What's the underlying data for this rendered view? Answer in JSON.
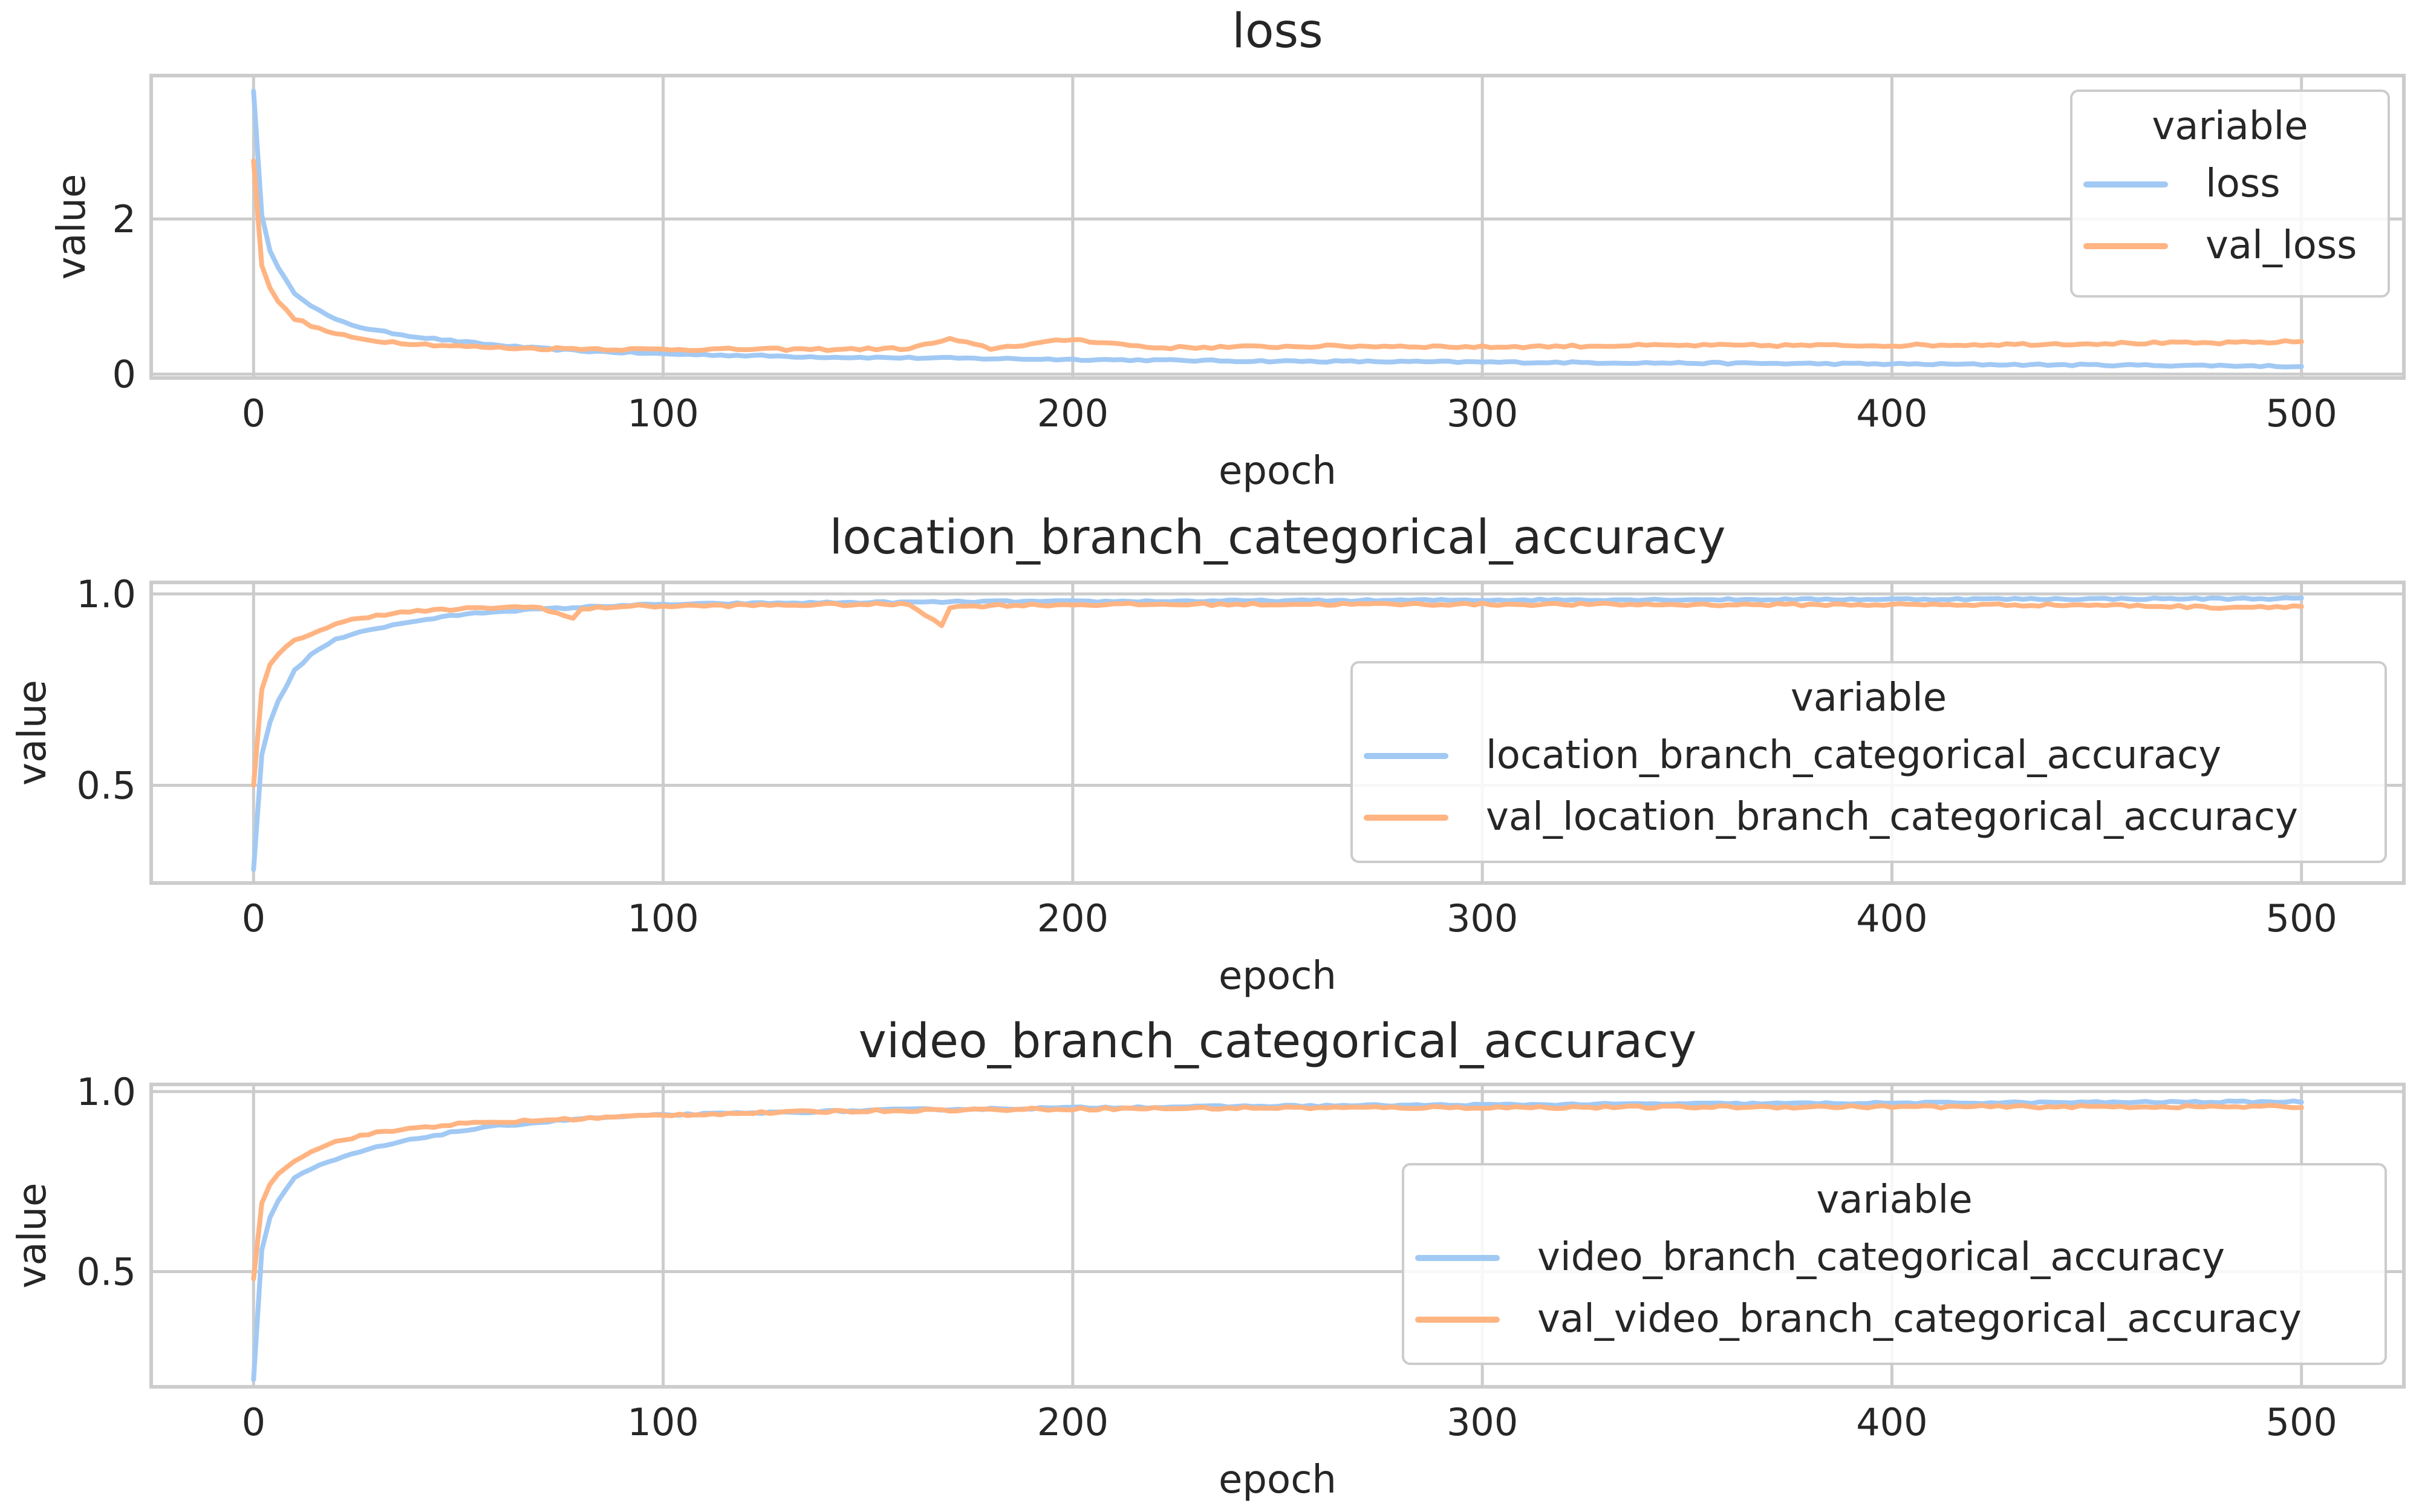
{
  "chart_data": [
    {
      "type": "line",
      "title": "loss",
      "xlabel": "epoch",
      "ylabel": "value",
      "xlim": [
        -25,
        525
      ],
      "ylim": [
        -0.05,
        3.85
      ],
      "xticks": [
        0,
        100,
        200,
        300,
        400,
        500
      ],
      "yticks": [
        0,
        2
      ],
      "ytick_labels": [
        "0",
        "2"
      ],
      "grid": true,
      "legend": {
        "title": "variable",
        "placement": "upper right"
      },
      "series": [
        {
          "name": "loss",
          "color": "#a1c9f4",
          "x": [
            0,
            1,
            2,
            3,
            5,
            8,
            10,
            15,
            20,
            25,
            30,
            40,
            50,
            60,
            70,
            80,
            90,
            100,
            120,
            140,
            160,
            180,
            200,
            220,
            240,
            260,
            280,
            300,
            320,
            340,
            360,
            380,
            400,
            420,
            440,
            460,
            480,
            500
          ],
          "y": [
            3.65,
            2.6,
            2.05,
            1.75,
            1.45,
            1.2,
            1.05,
            0.85,
            0.7,
            0.62,
            0.56,
            0.48,
            0.42,
            0.37,
            0.33,
            0.3,
            0.28,
            0.26,
            0.24,
            0.22,
            0.21,
            0.2,
            0.19,
            0.18,
            0.17,
            0.165,
            0.16,
            0.155,
            0.15,
            0.145,
            0.14,
            0.135,
            0.13,
            0.125,
            0.12,
            0.115,
            0.11,
            0.1
          ]
        },
        {
          "name": "val_loss",
          "color": "#ffb482",
          "x": [
            0,
            1,
            2,
            3,
            5,
            8,
            10,
            15,
            20,
            25,
            30,
            40,
            50,
            60,
            70,
            80,
            90,
            100,
            120,
            140,
            160,
            170,
            180,
            200,
            220,
            240,
            260,
            280,
            300,
            320,
            340,
            360,
            380,
            400,
            420,
            440,
            460,
            480,
            500
          ],
          "y": [
            2.75,
            1.8,
            1.4,
            1.2,
            1.0,
            0.82,
            0.72,
            0.6,
            0.52,
            0.46,
            0.43,
            0.39,
            0.36,
            0.34,
            0.33,
            0.33,
            0.32,
            0.32,
            0.32,
            0.32,
            0.33,
            0.45,
            0.33,
            0.45,
            0.34,
            0.35,
            0.36,
            0.36,
            0.35,
            0.36,
            0.37,
            0.37,
            0.37,
            0.37,
            0.38,
            0.39,
            0.4,
            0.4,
            0.42
          ]
        }
      ]
    },
    {
      "type": "line",
      "title": "location_branch_categorical_accuracy",
      "xlabel": "epoch",
      "ylabel": "value",
      "xlim": [
        -25,
        525
      ],
      "ylim": [
        0.245,
        1.03
      ],
      "xticks": [
        0,
        100,
        200,
        300,
        400,
        500
      ],
      "yticks": [
        0.5,
        1.0
      ],
      "ytick_labels": [
        "0.5",
        "1.0"
      ],
      "grid": true,
      "legend": {
        "title": "variable",
        "placement": "center right"
      },
      "series": [
        {
          "name": "location_branch_categorical_accuracy",
          "color": "#a1c9f4",
          "x": [
            0,
            1,
            2,
            3,
            5,
            8,
            10,
            15,
            20,
            25,
            30,
            40,
            50,
            60,
            70,
            80,
            90,
            100,
            120,
            140,
            160,
            180,
            200,
            250,
            300,
            350,
            400,
            450,
            500
          ],
          "y": [
            0.28,
            0.5,
            0.58,
            0.63,
            0.7,
            0.76,
            0.8,
            0.85,
            0.88,
            0.9,
            0.91,
            0.93,
            0.945,
            0.955,
            0.96,
            0.965,
            0.97,
            0.972,
            0.975,
            0.977,
            0.978,
            0.98,
            0.98,
            0.982,
            0.984,
            0.985,
            0.986,
            0.987,
            0.988
          ]
        },
        {
          "name": "val_location_branch_categorical_accuracy",
          "color": "#ffb482",
          "x": [
            0,
            1,
            2,
            3,
            5,
            8,
            10,
            15,
            20,
            25,
            30,
            40,
            50,
            60,
            70,
            78,
            80,
            90,
            100,
            120,
            140,
            160,
            168,
            170,
            180,
            200,
            250,
            300,
            350,
            400,
            450,
            480,
            500
          ],
          "y": [
            0.5,
            0.68,
            0.75,
            0.8,
            0.83,
            0.86,
            0.88,
            0.9,
            0.92,
            0.935,
            0.945,
            0.955,
            0.96,
            0.965,
            0.965,
            0.935,
            0.96,
            0.968,
            0.968,
            0.97,
            0.972,
            0.973,
            0.92,
            0.965,
            0.97,
            0.972,
            0.973,
            0.973,
            0.972,
            0.972,
            0.971,
            0.965,
            0.968
          ]
        }
      ]
    },
    {
      "type": "line",
      "title": "video_branch_categorical_accuracy",
      "xlabel": "epoch",
      "ylabel": "value",
      "xlim": [
        -25,
        525
      ],
      "ylim": [
        0.18,
        1.02
      ],
      "xticks": [
        0,
        100,
        200,
        300,
        400,
        500
      ],
      "yticks": [
        0.5,
        1.0
      ],
      "ytick_labels": [
        "0.5",
        "1.0"
      ],
      "grid": true,
      "legend": {
        "title": "variable",
        "placement": "center right"
      },
      "series": [
        {
          "name": "video_branch_categorical_accuracy",
          "color": "#a1c9f4",
          "x": [
            0,
            1,
            2,
            3,
            5,
            8,
            10,
            15,
            20,
            25,
            30,
            40,
            50,
            60,
            70,
            80,
            90,
            100,
            120,
            140,
            160,
            180,
            200,
            250,
            300,
            350,
            400,
            450,
            500
          ],
          "y": [
            0.2,
            0.45,
            0.56,
            0.62,
            0.68,
            0.73,
            0.76,
            0.79,
            0.81,
            0.83,
            0.845,
            0.87,
            0.89,
            0.905,
            0.915,
            0.925,
            0.93,
            0.935,
            0.94,
            0.945,
            0.95,
            0.952,
            0.955,
            0.96,
            0.963,
            0.966,
            0.968,
            0.97,
            0.972
          ]
        },
        {
          "name": "val_video_branch_categorical_accuracy",
          "color": "#ffb482",
          "x": [
            0,
            1,
            2,
            3,
            5,
            8,
            10,
            15,
            20,
            25,
            30,
            40,
            50,
            60,
            70,
            80,
            90,
            100,
            120,
            140,
            160,
            180,
            200,
            250,
            300,
            350,
            400,
            450,
            500
          ],
          "y": [
            0.48,
            0.62,
            0.69,
            0.73,
            0.76,
            0.79,
            0.81,
            0.84,
            0.86,
            0.875,
            0.885,
            0.9,
            0.91,
            0.915,
            0.92,
            0.925,
            0.93,
            0.935,
            0.94,
            0.945,
            0.948,
            0.95,
            0.952,
            0.955,
            0.956,
            0.957,
            0.958,
            0.958,
            0.958
          ]
        }
      ]
    }
  ]
}
